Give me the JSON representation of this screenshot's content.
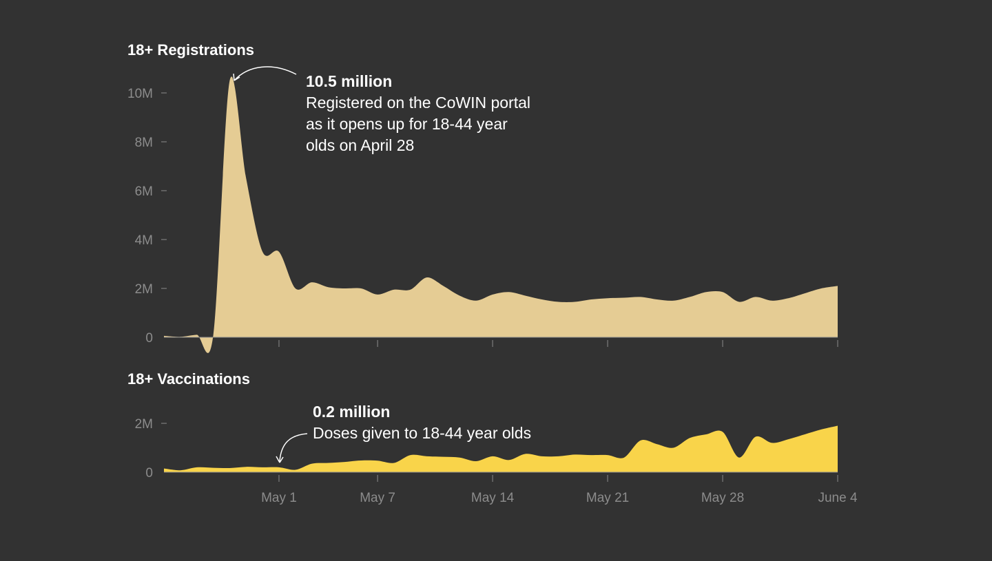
{
  "colors": {
    "background": "#323232",
    "registrations_fill": "#e5cc94",
    "vaccinations_fill": "#f9d44a",
    "text": "#ffffff",
    "axis": "#8c8c8c"
  },
  "x_tick_labels": [
    "May 1",
    "May 7",
    "May 14",
    "May 21",
    "May 28",
    "June 4"
  ],
  "chart_data": [
    {
      "type": "area",
      "title": "18+ Registrations",
      "y_tick_labels": [
        "0",
        "2M",
        "4M",
        "6M",
        "8M",
        "10M"
      ],
      "ylim": [
        0,
        10500000
      ],
      "x_range": [
        "Apr 24",
        "June 4"
      ],
      "x": [
        "Apr 24",
        "Apr 25",
        "Apr 26",
        "Apr 27",
        "Apr 28",
        "Apr 29",
        "Apr 30",
        "May 1",
        "May 2",
        "May 3",
        "May 4",
        "May 5",
        "May 6",
        "May 7",
        "May 8",
        "May 9",
        "May 10",
        "May 11",
        "May 12",
        "May 13",
        "May 14",
        "May 15",
        "May 16",
        "May 17",
        "May 18",
        "May 19",
        "May 20",
        "May 21",
        "May 22",
        "May 23",
        "May 24",
        "May 25",
        "May 26",
        "May 27",
        "May 28",
        "May 29",
        "May 30",
        "May 31",
        "June 1",
        "June 2",
        "June 3",
        "June 4"
      ],
      "values": [
        60000,
        20000,
        100000,
        90000,
        10500000,
        6500000,
        3500000,
        3500000,
        2000000,
        2250000,
        2050000,
        2000000,
        2000000,
        1750000,
        1950000,
        1950000,
        2450000,
        2100000,
        1700000,
        1500000,
        1750000,
        1850000,
        1700000,
        1550000,
        1450000,
        1450000,
        1550000,
        1600000,
        1620000,
        1650000,
        1550000,
        1500000,
        1650000,
        1850000,
        1850000,
        1450000,
        1650000,
        1500000,
        1600000,
        1800000,
        2000000,
        2100000
      ],
      "grid": false,
      "annotation": {
        "headline": "10.5 million",
        "lines": [
          "Registered on the CoWIN portal",
          "as it opens up for 18-44 year",
          "olds on April 28"
        ]
      }
    },
    {
      "type": "area",
      "title": "18+ Vaccinations",
      "y_tick_labels": [
        "0",
        "2M"
      ],
      "ylim": [
        0,
        2000000
      ],
      "x_range": [
        "Apr 24",
        "June 4"
      ],
      "x": [
        "Apr 24",
        "Apr 25",
        "Apr 26",
        "Apr 27",
        "Apr 28",
        "Apr 29",
        "Apr 30",
        "May 1",
        "May 2",
        "May 3",
        "May 4",
        "May 5",
        "May 6",
        "May 7",
        "May 8",
        "May 9",
        "May 10",
        "May 11",
        "May 12",
        "May 13",
        "May 14",
        "May 15",
        "May 16",
        "May 17",
        "May 18",
        "May 19",
        "May 20",
        "May 21",
        "May 22",
        "May 23",
        "May 24",
        "May 25",
        "May 26",
        "May 27",
        "May 28",
        "May 29",
        "May 30",
        "May 31",
        "June 1",
        "June 2",
        "June 3",
        "June 4"
      ],
      "values": [
        150000,
        80000,
        200000,
        180000,
        170000,
        220000,
        200000,
        200000,
        100000,
        350000,
        380000,
        420000,
        480000,
        470000,
        380000,
        700000,
        650000,
        630000,
        600000,
        450000,
        650000,
        500000,
        750000,
        650000,
        650000,
        720000,
        700000,
        700000,
        600000,
        1300000,
        1150000,
        1000000,
        1400000,
        1550000,
        1650000,
        600000,
        1450000,
        1200000,
        1350000,
        1550000,
        1750000,
        1900000
      ],
      "grid": false,
      "annotation": {
        "headline": "0.2 million",
        "lines": [
          "Doses given to 18-44 year olds"
        ]
      }
    }
  ]
}
